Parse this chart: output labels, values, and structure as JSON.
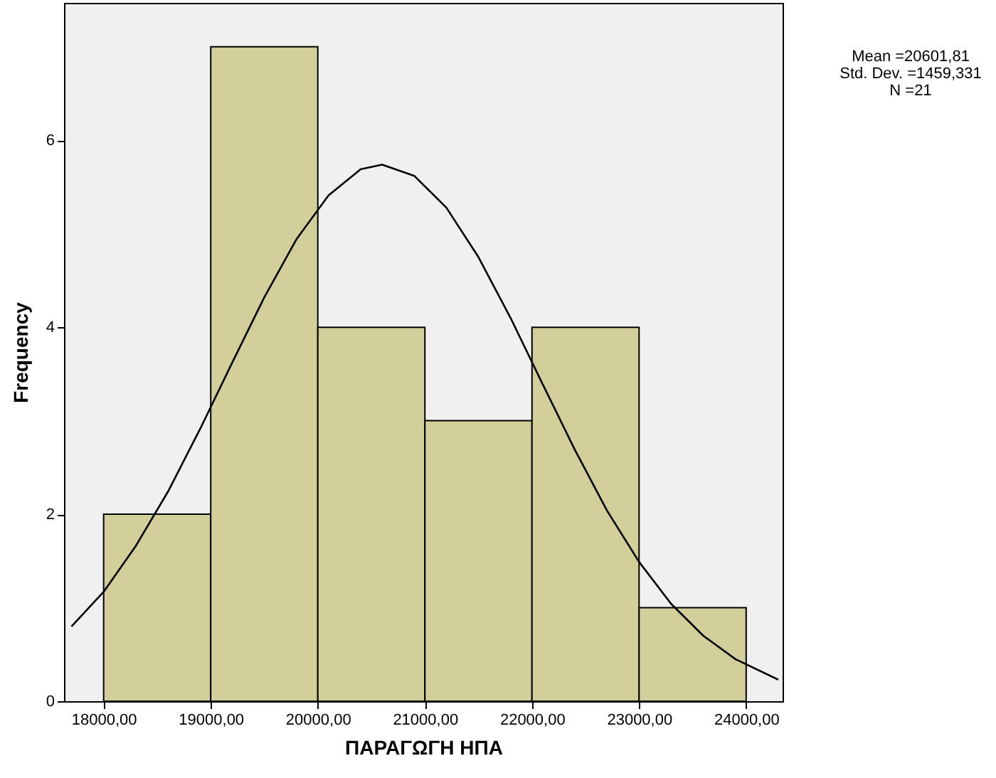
{
  "chart_data": {
    "type": "histogram",
    "xlabel": "ΠΑΡΑΓΩΓΗ ΗΠΑ",
    "ylabel": "Frequency",
    "bins": [
      18000,
      19000,
      20000,
      21000,
      22000,
      23000,
      24000
    ],
    "values": [
      2,
      7,
      4,
      3,
      4,
      1
    ],
    "color": "#d3cf9a",
    "series": [
      {
        "type": "line",
        "color": "#000000",
        "x": [
          17700,
          18000,
          18300,
          18600,
          18900,
          19200,
          19500,
          19800,
          20100,
          20400,
          20600,
          20900,
          21200,
          21500,
          21800,
          22100,
          22400,
          22700,
          23000,
          23300,
          23600,
          23900,
          24300
        ],
        "values": [
          0.8,
          1.17,
          1.66,
          2.24,
          2.91,
          3.62,
          4.32,
          4.94,
          5.41,
          5.69,
          5.74,
          5.62,
          5.28,
          4.75,
          4.1,
          3.39,
          2.69,
          2.04,
          1.49,
          1.04,
          0.7,
          0.45,
          0.23
        ]
      }
    ],
    "xlim": [
      17630,
      24340
    ],
    "ylim": [
      0,
      7.47
    ],
    "xticks": [
      {
        "value": 18000,
        "label": "18000,00"
      },
      {
        "value": 19000,
        "label": "19000,00"
      },
      {
        "value": 20000,
        "label": "20000,00"
      },
      {
        "value": 21000,
        "label": "21000,00"
      },
      {
        "value": 22000,
        "label": "22000,00"
      },
      {
        "value": 23000,
        "label": "23000,00"
      },
      {
        "value": 24000,
        "label": "24000,00"
      }
    ],
    "yticks": [
      0,
      2,
      4,
      6
    ],
    "annotations": [
      "Mean =20601,81",
      "Std. Dev. =1459,331",
      "N =21"
    ],
    "grid": false
  }
}
